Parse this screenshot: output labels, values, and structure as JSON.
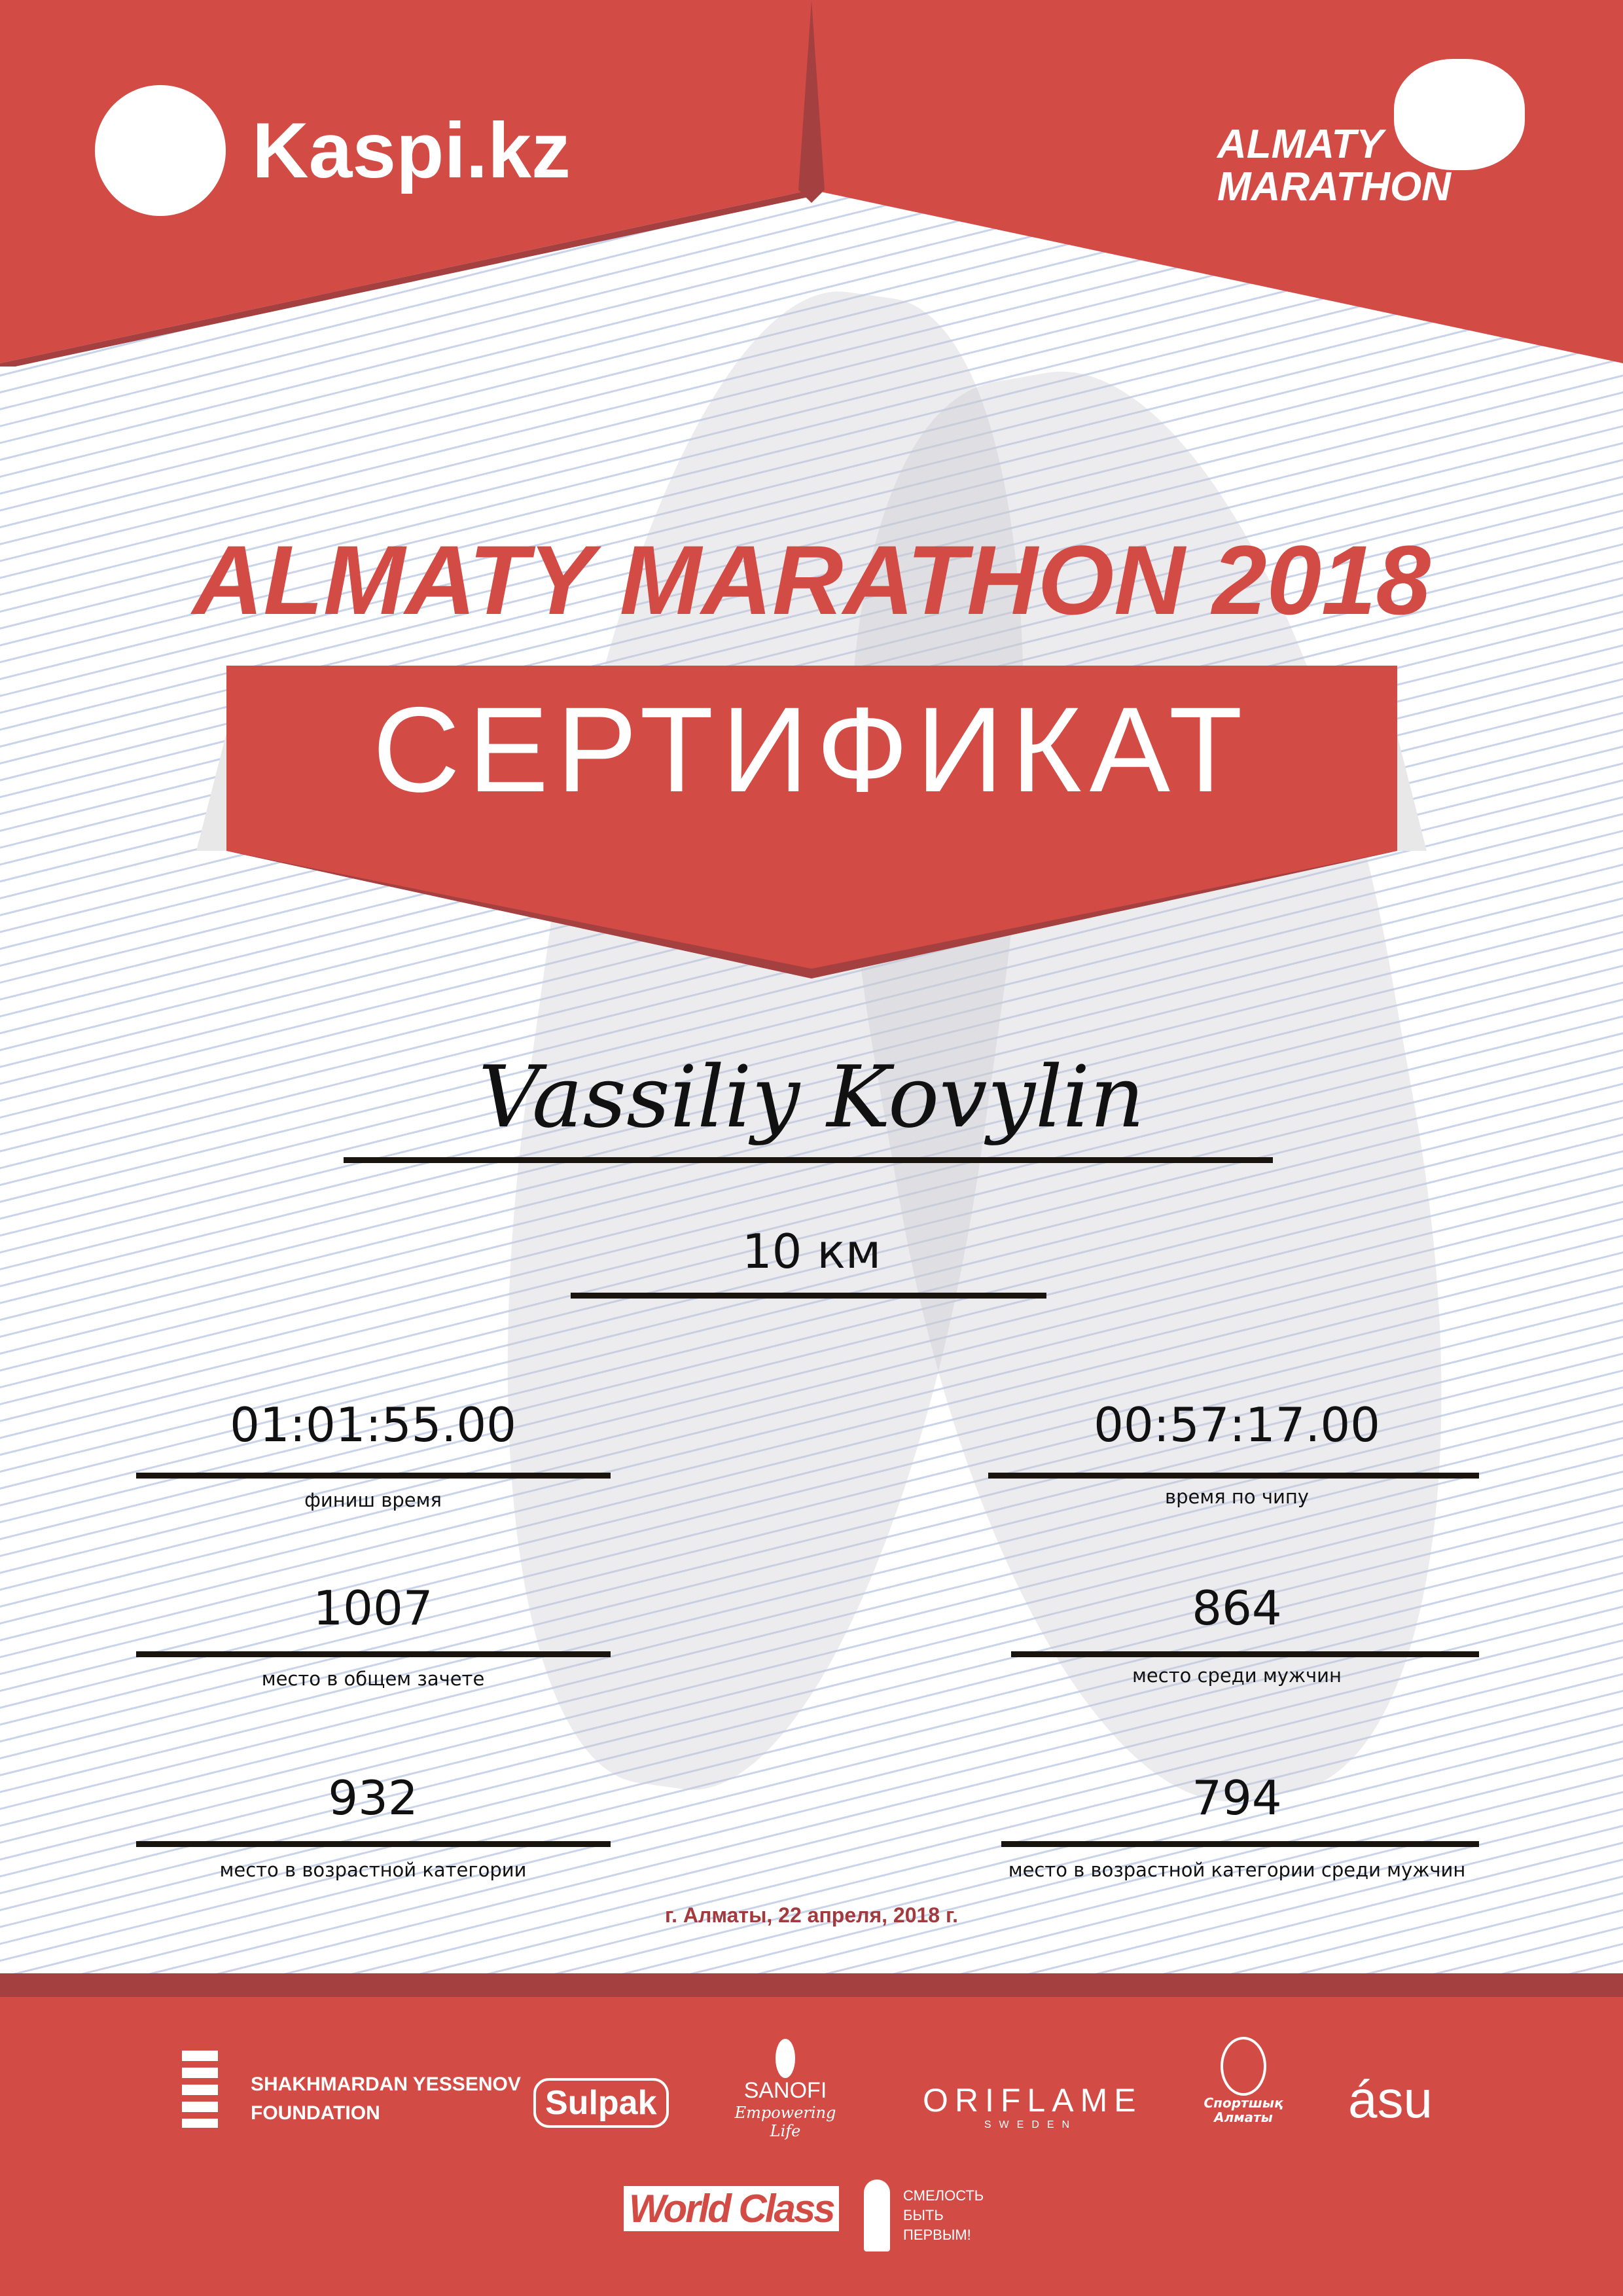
{
  "header": {
    "sponsor_logo": "Kaspi.kz",
    "event_logo_line1": "ALMATY",
    "event_logo_line2": "MARATHON"
  },
  "title": "ALMATY MARATHON 2018",
  "banner": "СЕРТИФИКАТ",
  "participant": {
    "name": "Vassiliy Kovylin",
    "distance": "10 км"
  },
  "results": {
    "finish_time": {
      "value": "01:01:55.00",
      "label": "финиш время"
    },
    "chip_time": {
      "value": "00:57:17.00",
      "label": "время по чипу"
    },
    "overall_place": {
      "value": "1007",
      "label": "место в общем зачете"
    },
    "gender_place": {
      "value": "864",
      "label": "место среди мужчин"
    },
    "age_place": {
      "value": "932",
      "label": "место в возрастной категории"
    },
    "age_gender_place": {
      "value": "794",
      "label": "место в возрастной категории среди мужчин"
    }
  },
  "date": "г. Алматы, 22 апреля, 2018 г.",
  "sponsors": {
    "yessenov_line1": "SHAKHMARDAN YESSENOV",
    "yessenov_line2": "FOUNDATION",
    "sulpak": "Sulpak",
    "sanofi": "SANOFI",
    "sanofi_tagline": "Empowering Life",
    "oriflame": "ORIFLAME",
    "oriflame_sub": "SWEDEN",
    "sport_almaty": "Спортшық Алматы",
    "asu": "ásu",
    "worldclass": "World Class",
    "fund_line1": "СМЕЛОСТЬ",
    "fund_line2": "БЫТЬ",
    "fund_line3": "ПЕРВЫМ!"
  },
  "colors": {
    "red": "#d34b45",
    "dark_red": "#a54040",
    "line": "#1a140e",
    "date_red": "#a33a3e"
  }
}
